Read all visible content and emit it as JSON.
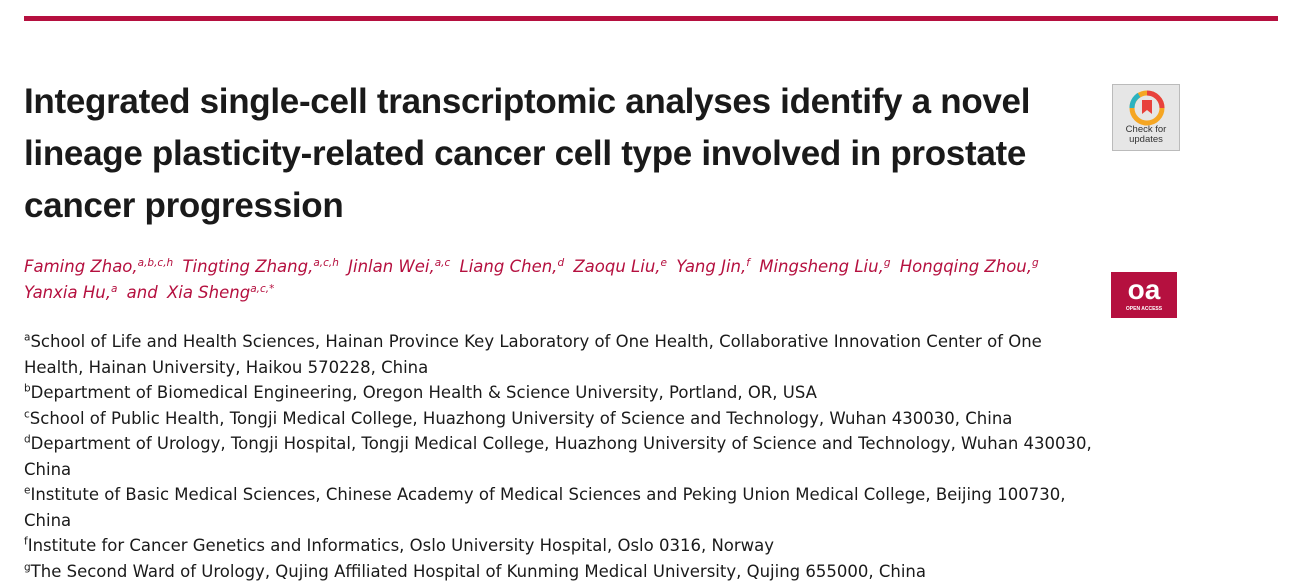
{
  "header": {
    "title": "Integrated single-cell transcriptomic analyses identify a novel lineage plasticity-related cancer cell type involved in prostate cancer progression",
    "check_badge": "Check for updates",
    "oa_badge": {
      "logo": "oa",
      "label": "OPEN ACCESS"
    }
  },
  "authors": [
    {
      "name": "Faming Zhao,",
      "sup": "a,b,c,h"
    },
    {
      "name": "Tingting Zhang,",
      "sup": "a,c,h"
    },
    {
      "name": "Jinlan Wei,",
      "sup": "a,c"
    },
    {
      "name": "Liang Chen,",
      "sup": "d"
    },
    {
      "name": "Zaoqu Liu,",
      "sup": "e"
    },
    {
      "name": "Yang Jin,",
      "sup": "f"
    },
    {
      "name": "Mingsheng Liu,",
      "sup": "g"
    },
    {
      "name": "Hongqing Zhou,",
      "sup": "g"
    },
    {
      "name": "Yanxia Hu,",
      "sup": "a"
    },
    {
      "name": "and",
      "sup": null
    },
    {
      "name": "Xia Sheng",
      "sup": "a,c,*"
    }
  ],
  "affiliations": [
    {
      "label": "a",
      "text": "School of Life and Health Sciences, Hainan Province Key Laboratory of One Health, Collaborative Innovation Center of One Health, Hainan University, Haikou 570228, China"
    },
    {
      "label": "b",
      "text": "Department of Biomedical Engineering, Oregon Health & Science University, Portland, OR, USA"
    },
    {
      "label": "c",
      "text": "School of Public Health, Tongji Medical College, Huazhong University of Science and Technology, Wuhan 430030, China"
    },
    {
      "label": "d",
      "text": "Department of Urology, Tongji Hospital, Tongji Medical College, Huazhong University of Science and Technology, Wuhan 430030, China"
    },
    {
      "label": "e",
      "text": "Institute of Basic Medical Sciences, Chinese Academy of Medical Sciences and Peking Union Medical College, Beijing 100730, China"
    },
    {
      "label": "f",
      "text": "Institute for Cancer Genetics and Informatics, Oslo University Hospital, Oslo 0316, Norway"
    },
    {
      "label": "g",
      "text": "The Second Ward of Urology, Qujing Affiliated Hospital of Kunming Medical University, Qujing 655000, China"
    }
  ]
}
